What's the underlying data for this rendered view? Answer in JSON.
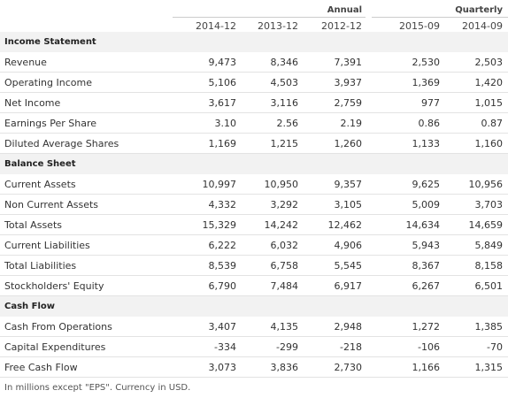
{
  "groups": [
    "Annual",
    "Quarterly"
  ],
  "columns": [
    "2014-12",
    "2013-12",
    "2012-12",
    "2015-09",
    "2014-09"
  ],
  "sections": [
    {
      "title": "Income Statement",
      "rows": [
        {
          "label": "Revenue",
          "values": [
            "9,473",
            "8,346",
            "7,391",
            "2,530",
            "2,503"
          ]
        },
        {
          "label": "Operating Income",
          "values": [
            "5,106",
            "4,503",
            "3,937",
            "1,369",
            "1,420"
          ]
        },
        {
          "label": "Net Income",
          "values": [
            "3,617",
            "3,116",
            "2,759",
            "977",
            "1,015"
          ]
        },
        {
          "label": "Earnings Per Share",
          "values": [
            "3.10",
            "2.56",
            "2.19",
            "0.86",
            "0.87"
          ]
        },
        {
          "label": "Diluted Average Shares",
          "values": [
            "1,169",
            "1,215",
            "1,260",
            "1,133",
            "1,160"
          ]
        }
      ]
    },
    {
      "title": "Balance Sheet",
      "rows": [
        {
          "label": "Current Assets",
          "values": [
            "10,997",
            "10,950",
            "9,357",
            "9,625",
            "10,956"
          ]
        },
        {
          "label": "Non Current Assets",
          "values": [
            "4,332",
            "3,292",
            "3,105",
            "5,009",
            "3,703"
          ]
        },
        {
          "label": "Total Assets",
          "values": [
            "15,329",
            "14,242",
            "12,462",
            "14,634",
            "14,659"
          ]
        },
        {
          "label": "Current Liabilities",
          "values": [
            "6,222",
            "6,032",
            "4,906",
            "5,943",
            "5,849"
          ]
        },
        {
          "label": "Total Liabilities",
          "values": [
            "8,539",
            "6,758",
            "5,545",
            "8,367",
            "8,158"
          ]
        },
        {
          "label": "Stockholders' Equity",
          "values": [
            "6,790",
            "7,484",
            "6,917",
            "6,267",
            "6,501"
          ]
        }
      ]
    },
    {
      "title": "Cash Flow",
      "rows": [
        {
          "label": "Cash From Operations",
          "values": [
            "3,407",
            "4,135",
            "2,948",
            "1,272",
            "1,385"
          ]
        },
        {
          "label": "Capital Expenditures",
          "values": [
            "-334",
            "-299",
            "-218",
            "-106",
            "-70"
          ]
        },
        {
          "label": "Free Cash Flow",
          "values": [
            "3,073",
            "3,836",
            "2,730",
            "1,166",
            "1,315"
          ]
        }
      ]
    }
  ],
  "footnote": "In millions except \"EPS\". Currency in USD."
}
